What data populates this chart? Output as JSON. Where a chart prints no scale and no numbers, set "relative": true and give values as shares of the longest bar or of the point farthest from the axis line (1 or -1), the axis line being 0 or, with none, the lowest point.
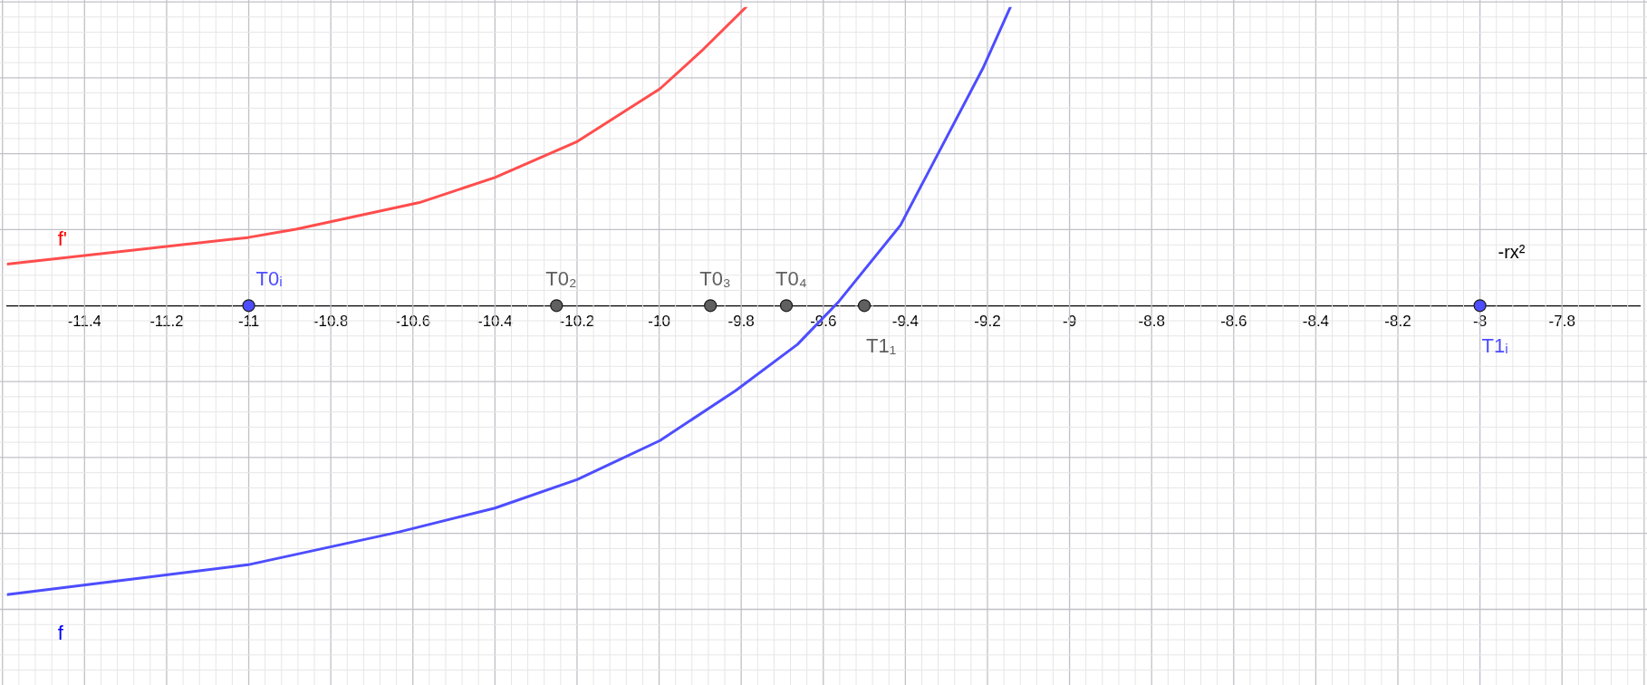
{
  "chart_data": {
    "type": "line",
    "relative": true,
    "grid": true,
    "legend": false,
    "marker": "none",
    "line_style": "solid",
    "xlim": [
      -11.589,
      -7.61
    ],
    "xticks": [
      -11.4,
      -11.2,
      -11,
      -10.8,
      -10.6,
      -10.4,
      -10.2,
      -10,
      -9.8,
      -9.6,
      -9.4,
      -9.2,
      -9,
      -8.8,
      -8.6,
      -8.4,
      -8.2,
      -8,
      -7.8
    ],
    "series": [
      {
        "name": "f'",
        "color": "#ff4d4d",
        "x": [
          -11.589,
          -11.002,
          -10.885,
          -10.584,
          -10.4,
          -10.199,
          -9.998,
          -9.897,
          -9.788
        ],
        "values": [
          0.139,
          0.228,
          0.256,
          0.345,
          0.429,
          0.55,
          0.726,
          0.852,
          1
        ]
      },
      {
        "name": "f",
        "color": "#4d4dff",
        "x": [
          -11.589,
          -11.002,
          -10.634,
          -10.4,
          -10.199,
          -9.998,
          -9.814,
          -9.663,
          -9.562,
          -9.412,
          -9.211,
          -9.144
        ],
        "values": [
          -0.968,
          -0.868,
          -0.758,
          -0.678,
          -0.582,
          -0.452,
          -0.285,
          -0.13,
          0.014,
          0.269,
          0.795,
          1
        ]
      },
      {
        "name": "T0ᵢ",
        "type": "scatter",
        "marker": "circle",
        "color": "#4d4dff",
        "x": [
          -11
        ],
        "values": [
          0
        ]
      },
      {
        "name": "T0₂",
        "type": "scatter",
        "marker": "circle",
        "color": "#606060",
        "x": [
          -10.25
        ],
        "values": [
          0
        ]
      },
      {
        "name": "T0₃",
        "type": "scatter",
        "marker": "circle",
        "color": "#606060",
        "x": [
          -9.875
        ],
        "values": [
          0
        ]
      },
      {
        "name": "T0₄",
        "type": "scatter",
        "marker": "circle",
        "color": "#606060",
        "x": [
          -9.69
        ],
        "values": [
          0
        ]
      },
      {
        "name": "T1₁",
        "type": "scatter",
        "marker": "circle",
        "color": "#606060",
        "x": [
          -9.5
        ],
        "values": [
          0
        ]
      },
      {
        "name": "T1ᵢ",
        "type": "scatter",
        "marker": "circle",
        "color": "#4d4dff",
        "x": [
          -8
        ],
        "values": [
          0
        ]
      }
    ],
    "annotations": [
      "-rx²"
    ]
  }
}
